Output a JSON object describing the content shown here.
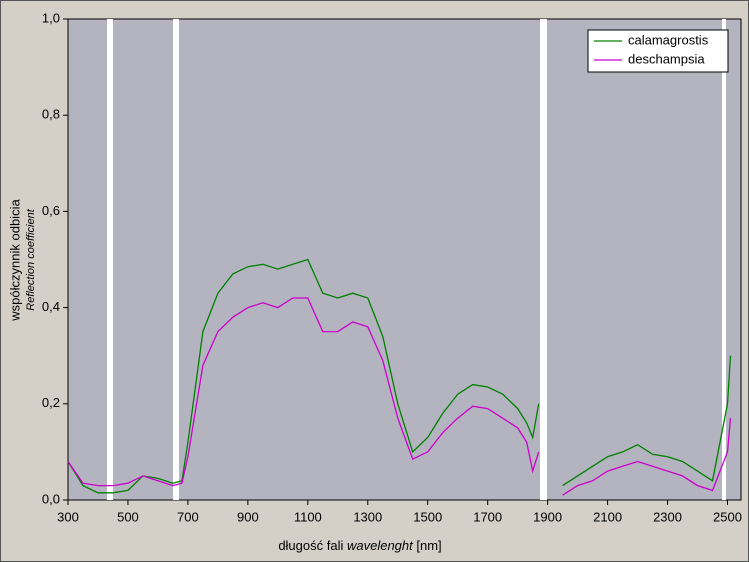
{
  "chart_data": {
    "type": "line",
    "xlabel": [
      "długość fali",
      "wavelenght",
      "[nm]"
    ],
    "ylabel": [
      "współczynnik odbicia",
      "Reflection coefficient"
    ],
    "x": [
      300,
      350,
      400,
      450,
      500,
      550,
      600,
      650,
      680,
      700,
      750,
      800,
      850,
      900,
      950,
      1000,
      1050,
      1100,
      1150,
      1200,
      1250,
      1300,
      1350,
      1400,
      1450,
      1500,
      1550,
      1600,
      1650,
      1700,
      1750,
      1800,
      1830,
      1850,
      1870,
      1890,
      1950,
      2000,
      2050,
      2100,
      2150,
      2200,
      2250,
      2300,
      2350,
      2400,
      2450,
      2500,
      2510
    ],
    "series": [
      {
        "name": "calamagrostis",
        "color": "#008000",
        "values": [
          0.08,
          0.03,
          0.015,
          0.015,
          0.02,
          0.05,
          0.045,
          0.035,
          0.04,
          0.12,
          0.35,
          0.43,
          0.47,
          0.485,
          0.49,
          0.48,
          0.49,
          0.5,
          0.43,
          0.42,
          0.43,
          0.42,
          0.34,
          0.2,
          0.1,
          0.13,
          0.18,
          0.22,
          0.24,
          0.235,
          0.22,
          0.19,
          0.16,
          0.13,
          0.2,
          null,
          0.03,
          0.05,
          0.07,
          0.09,
          0.1,
          0.115,
          0.095,
          0.09,
          0.08,
          0.06,
          0.04,
          0.2,
          0.3
        ]
      },
      {
        "name": "deschampsia",
        "color": "#cc00cc",
        "values": [
          0.08,
          0.035,
          0.03,
          0.03,
          0.035,
          0.05,
          0.04,
          0.03,
          0.035,
          0.09,
          0.28,
          0.35,
          0.38,
          0.4,
          0.41,
          0.4,
          0.42,
          0.42,
          0.35,
          0.35,
          0.37,
          0.36,
          0.29,
          0.17,
          0.085,
          0.1,
          0.14,
          0.17,
          0.195,
          0.19,
          0.17,
          0.15,
          0.12,
          0.06,
          0.1,
          null,
          0.01,
          0.03,
          0.04,
          0.06,
          0.07,
          0.08,
          0.07,
          0.06,
          0.05,
          0.03,
          0.02,
          0.1,
          0.17
        ]
      }
    ],
    "xlim": [
      300,
      2545
    ],
    "xticks": [
      300,
      500,
      700,
      900,
      1100,
      1300,
      1500,
      1700,
      1900,
      2100,
      2300,
      2500
    ],
    "ylim": [
      0,
      1
    ],
    "yticks": [
      {
        "value": 0,
        "label": "0,0"
      },
      {
        "value": 0.2,
        "label": "0,2"
      },
      {
        "value": 0.4,
        "label": "0,4"
      },
      {
        "value": 0.6,
        "label": "0,6"
      },
      {
        "value": 0.8,
        "label": "0,8"
      },
      {
        "value": 1,
        "label": "1,0"
      }
    ],
    "legend": "top-right"
  }
}
